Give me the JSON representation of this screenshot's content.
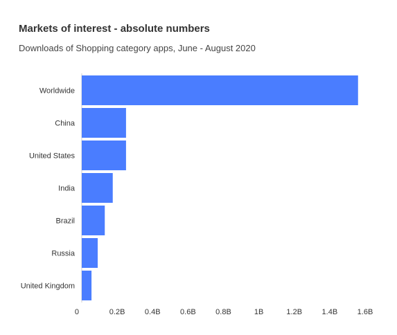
{
  "header": {
    "title": "Markets of interest - absolute numbers",
    "subtitle": "Downloads of Shopping category apps, June - August 2020"
  },
  "colors": {
    "bar": "#4a7dff",
    "axis": "#cccccc"
  },
  "chart_data": {
    "type": "bar",
    "orientation": "horizontal",
    "title": "Markets of interest - absolute numbers",
    "subtitle": "Downloads of Shopping category apps, June - August 2020",
    "categories": [
      "Worldwide",
      "China",
      "United States",
      "India",
      "Brazil",
      "Russia",
      "United Kingdom"
    ],
    "values": [
      1.56,
      0.25,
      0.25,
      0.175,
      0.13,
      0.09,
      0.055
    ],
    "value_unit": "B",
    "xlim": [
      0,
      1.6
    ],
    "x_ticks": [
      0,
      0.2,
      0.4,
      0.6,
      0.8,
      1.0,
      1.2,
      1.4,
      1.6
    ],
    "x_tick_labels": [
      "0",
      "0.2B",
      "0.4B",
      "0.6B",
      "0.8B",
      "1B",
      "1.2B",
      "1.4B",
      "1.6B"
    ],
    "grid": false,
    "legend": "none"
  }
}
